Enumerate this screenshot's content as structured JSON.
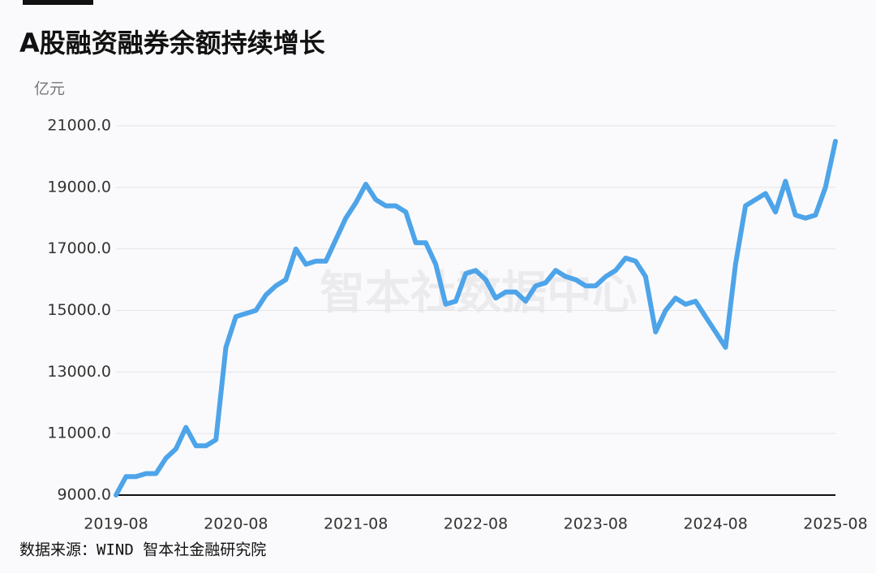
{
  "chart_data": {
    "type": "line",
    "title": "A股融资融券余额持续增长",
    "y_unit": "亿元",
    "watermark": "智本社数据中心",
    "source": "数据来源：WIND 智本社金融研究院",
    "x": [
      "2019-08",
      "2019-09",
      "2019-10",
      "2019-11",
      "2019-12",
      "2020-01",
      "2020-02",
      "2020-03",
      "2020-04",
      "2020-05",
      "2020-06",
      "2020-07",
      "2020-08",
      "2020-09",
      "2020-10",
      "2020-11",
      "2020-12",
      "2021-01",
      "2021-02",
      "2021-03",
      "2021-04",
      "2021-05",
      "2021-06",
      "2021-07",
      "2021-08",
      "2021-09",
      "2021-10",
      "2021-11",
      "2021-12",
      "2022-01",
      "2022-02",
      "2022-03",
      "2022-04",
      "2022-05",
      "2022-06",
      "2022-07",
      "2022-08",
      "2022-09",
      "2022-10",
      "2022-11",
      "2022-12",
      "2023-01",
      "2023-02",
      "2023-03",
      "2023-04",
      "2023-05",
      "2023-06",
      "2023-07",
      "2023-08",
      "2023-09",
      "2023-10",
      "2023-11",
      "2023-12",
      "2024-01",
      "2024-02",
      "2024-03",
      "2024-04",
      "2024-05",
      "2024-06",
      "2024-07",
      "2024-08",
      "2024-09",
      "2024-10",
      "2024-11",
      "2024-12",
      "2025-01",
      "2025-02",
      "2025-03",
      "2025-04",
      "2025-05",
      "2025-06",
      "2025-07",
      "2025-08"
    ],
    "series": [
      {
        "name": "融资融券余额",
        "color": "#4ea4e9",
        "values": [
          9000,
          9600,
          9600,
          9700,
          9700,
          10200,
          10500,
          11200,
          10600,
          10600,
          10800,
          13800,
          14800,
          14900,
          15000,
          15500,
          15800,
          16000,
          17000,
          16500,
          16600,
          16600,
          17300,
          18000,
          18500,
          19100,
          18600,
          18400,
          18400,
          18200,
          17200,
          17200,
          16500,
          15200,
          15300,
          16200,
          16300,
          16000,
          15400,
          15600,
          15600,
          15300,
          15800,
          15900,
          16300,
          16100,
          16000,
          15800,
          15800,
          16100,
          16300,
          16700,
          16600,
          16100,
          14300,
          15000,
          15400,
          15200,
          15300,
          14800,
          14300,
          13800,
          16500,
          18400,
          18600,
          18800,
          18200,
          19200,
          18100,
          18000,
          18100,
          19000,
          20500
        ]
      }
    ],
    "xticks": [
      "2019-08",
      "2020-08",
      "2021-08",
      "2022-08",
      "2023-08",
      "2024-08",
      "2025-08"
    ],
    "ylim": [
      9000,
      21000
    ],
    "yticks": [
      {
        "value": 9000,
        "label": "9000.0"
      },
      {
        "value": 11000,
        "label": "11000.0"
      },
      {
        "value": 13000,
        "label": "13000.0"
      },
      {
        "value": 15000,
        "label": "15000.0"
      },
      {
        "value": 17000,
        "label": "17000.0"
      },
      {
        "value": 19000,
        "label": "19000.0"
      },
      {
        "value": 21000,
        "label": "21000.0"
      }
    ],
    "grid": true
  }
}
